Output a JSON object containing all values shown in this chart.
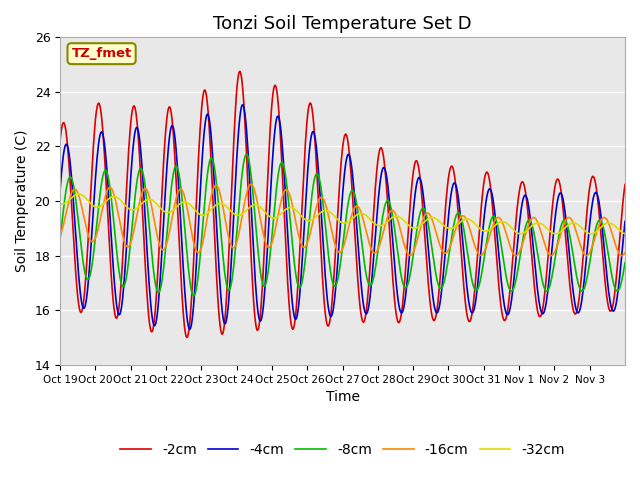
{
  "title": "Tonzi Soil Temperature Set D",
  "xlabel": "Time",
  "ylabel": "Soil Temperature (C)",
  "ylim": [
    14,
    26
  ],
  "yticks": [
    14,
    16,
    18,
    20,
    22,
    24,
    26
  ],
  "xtick_labels": [
    "Oct 19",
    "Oct 20",
    "Oct 21",
    "Oct 22",
    "Oct 23",
    "Oct 24",
    "Oct 25",
    "Oct 26",
    "Oct 27",
    "Oct 28",
    "Oct 29",
    "Oct 30",
    "Oct 31",
    "Nov 1",
    "Nov 2",
    "Nov 3"
  ],
  "legend_labels": [
    "-2cm",
    "-4cm",
    "-8cm",
    "-16cm",
    "-32cm"
  ],
  "line_colors": [
    "#dd0000",
    "#0000cc",
    "#00bb00",
    "#ff8800",
    "#dddd00"
  ],
  "annotation_text": "TZ_fmet",
  "annotation_color": "#cc0000",
  "annotation_bg": "#ffffcc",
  "background_color": "#e8e8e8",
  "grid_color": "#ffffff",
  "title_fontsize": 13,
  "axis_fontsize": 10,
  "legend_fontsize": 10
}
